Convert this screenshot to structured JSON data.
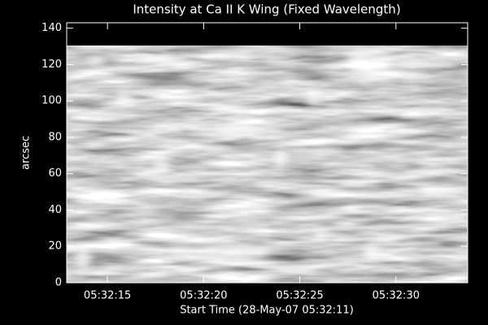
{
  "chart_data": {
    "type": "image",
    "title": "Intensity at Ca II K Wing (Fixed Wavelength)",
    "xlabel": "Start Time (28-May-07 05:32:11)",
    "ylabel": "arcsec",
    "xlim": [
      1.88,
      22.73
    ],
    "xticks": [
      {
        "value": 4,
        "label": "05:32:15"
      },
      {
        "value": 9,
        "label": "05:32:20"
      },
      {
        "value": 14,
        "label": "05:32:25"
      },
      {
        "value": 19,
        "label": "05:32:30"
      }
    ],
    "ylim": [
      0,
      143
    ],
    "yticks": [
      0,
      20,
      40,
      60,
      80,
      100,
      120,
      140
    ]
  }
}
